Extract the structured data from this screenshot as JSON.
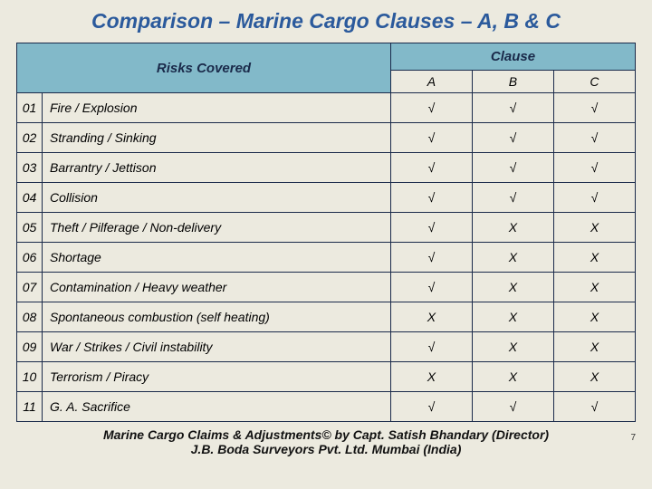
{
  "title": "Comparison – Marine Cargo Clauses – A, B & C",
  "headers": {
    "risks": "Risks Covered",
    "clause": "Clause",
    "a": "A",
    "b": "B",
    "c": "C"
  },
  "tick": "√",
  "cross": "X",
  "rows": [
    {
      "n": "01",
      "risk": "Fire / Explosion",
      "a": true,
      "b": true,
      "c": true
    },
    {
      "n": "02",
      "risk": "Stranding / Sinking",
      "a": true,
      "b": true,
      "c": true
    },
    {
      "n": "03",
      "risk": "Barrantry / Jettison",
      "a": true,
      "b": true,
      "c": true
    },
    {
      "n": "04",
      "risk": "Collision",
      "a": true,
      "b": true,
      "c": true
    },
    {
      "n": "05",
      "risk": "Theft / Pilferage / Non-delivery",
      "a": true,
      "b": false,
      "c": false
    },
    {
      "n": "06",
      "risk": "Shortage",
      "a": true,
      "b": false,
      "c": false
    },
    {
      "n": "07",
      "risk": "Contamination / Heavy weather",
      "a": true,
      "b": false,
      "c": false
    },
    {
      "n": "08",
      "risk": "Spontaneous combustion (self heating)",
      "a": false,
      "b": false,
      "c": false
    },
    {
      "n": "09",
      "risk": "War / Strikes / Civil instability",
      "a": true,
      "b": false,
      "c": false
    },
    {
      "n": "10",
      "risk": "Terrorism / Piracy",
      "a": false,
      "b": false,
      "c": false
    },
    {
      "n": "11",
      "risk": "G. A. Sacrifice",
      "a": true,
      "b": true,
      "c": true
    }
  ],
  "footer_line1": "Marine Cargo Claims & Adjustments© by Capt. Satish Bhandary (Director)",
  "footer_line2": "J.B. Boda Surveyors Pvt. Ltd. Mumbai (India)",
  "page_number": "7",
  "colors": {
    "header_bg": "#82b9c9",
    "page_bg": "#eceadf",
    "border": "#1a2a4a",
    "title": "#2b5a9c"
  }
}
